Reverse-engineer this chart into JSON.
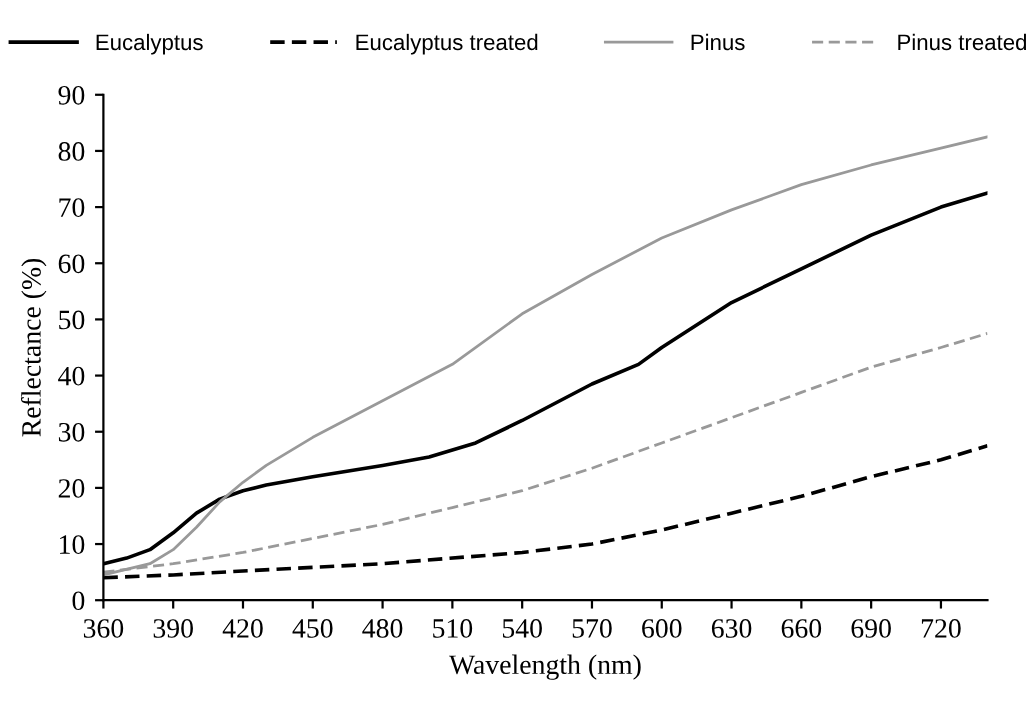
{
  "chart_data": {
    "type": "line",
    "xlabel": "Wavelength (nm)",
    "ylabel": "Reflectance (%)",
    "xlim": [
      360,
      740
    ],
    "xticks": [
      360,
      390,
      420,
      450,
      480,
      510,
      540,
      570,
      600,
      630,
      660,
      690,
      720
    ],
    "ylim": [
      0,
      90
    ],
    "yticks": [
      0,
      10,
      20,
      30,
      40,
      50,
      60,
      70,
      80,
      90
    ],
    "grid": false,
    "legend": "top",
    "marker": "none",
    "series": [
      {
        "name": "Eucalyptus",
        "color": "#000000",
        "line_style": "solid",
        "x": [
          360,
          370,
          380,
          390,
          400,
          410,
          420,
          430,
          450,
          480,
          500,
          520,
          540,
          570,
          590,
          600,
          630,
          660,
          690,
          720,
          740
        ],
        "values": [
          6.5,
          7.5,
          9,
          12,
          15.5,
          18,
          19.5,
          20.5,
          22,
          24,
          25.5,
          28,
          32,
          38.5,
          42,
          45,
          53,
          59,
          65,
          70,
          72.5
        ]
      },
      {
        "name": "Eucalyptus treated",
        "color": "#000000",
        "line_style": "dashed",
        "x": [
          360,
          390,
          420,
          480,
          540,
          570,
          600,
          630,
          660,
          690,
          720,
          740
        ],
        "values": [
          4,
          4.5,
          5.2,
          6.5,
          8.5,
          10,
          12.5,
          15.5,
          18.5,
          22,
          25,
          27.5
        ]
      },
      {
        "name": "Pinus",
        "color": "#999999",
        "line_style": "solid",
        "x": [
          360,
          380,
          390,
          400,
          410,
          420,
          430,
          450,
          480,
          510,
          540,
          570,
          600,
          630,
          660,
          690,
          720,
          740
        ],
        "values": [
          4.5,
          6.5,
          9,
          13,
          17.5,
          21,
          24,
          29,
          35.5,
          42,
          51,
          58,
          64.5,
          69.5,
          74,
          77.5,
          80.5,
          82.5
        ]
      },
      {
        "name": "Pinus treated",
        "color": "#999999",
        "line_style": "dashed",
        "x": [
          360,
          390,
          420,
          450,
          480,
          510,
          540,
          570,
          600,
          630,
          660,
          690,
          720,
          740
        ],
        "values": [
          5,
          6.5,
          8.5,
          11,
          13.5,
          16.5,
          19.5,
          23.5,
          28,
          32.5,
          37,
          41.5,
          45,
          47.5
        ]
      }
    ]
  }
}
